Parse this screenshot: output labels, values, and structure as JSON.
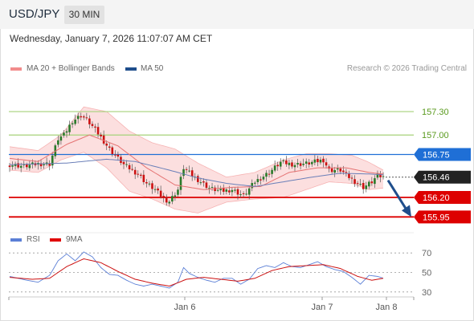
{
  "header": {
    "pair": "USD/JPY",
    "timeframe": "30 MIN"
  },
  "datetime": "Wednesday, January 7, 2026 11:07:07 AM CET",
  "legend": {
    "bollinger": {
      "label": "MA 20 + Bollinger Bands",
      "color": "#f28c8c"
    },
    "ma50": {
      "label": "MA 50",
      "color": "#1f4e8c"
    }
  },
  "credit": "Research © 2026 Trading Central",
  "rsi_legend": {
    "rsi": {
      "label": "RSI",
      "color": "#5b7fd6"
    },
    "ma9": {
      "label": "9MA",
      "color": "#e00000"
    }
  },
  "colors": {
    "bull": "#2a7a2a",
    "bear": "#cc1111",
    "wick": "#555555",
    "band_fill": "#fcd9d9",
    "arrow": "#1f4e8c"
  },
  "chart_data": [
    {
      "type": "candlestick",
      "title": "USD/JPY 30 MIN",
      "ylim": [
        155.83,
        157.65
      ],
      "x_ticks": [
        "Jan 6",
        "Jan 7",
        "Jan 8"
      ],
      "levels": [
        {
          "value": 157.3,
          "label": "157.30",
          "style": "green-line"
        },
        {
          "value": 157.0,
          "label": "157.00",
          "style": "green-line"
        },
        {
          "value": 156.75,
          "label": "156.75",
          "style": "blue-box"
        },
        {
          "value": 156.46,
          "label": "156.46",
          "style": "current-price"
        },
        {
          "value": 156.2,
          "label": "156.20",
          "style": "red-box"
        },
        {
          "value": 155.95,
          "label": "155.95",
          "style": "red-box"
        }
      ],
      "current_price": 156.46,
      "close_path": [
        [
          0,
          156.62
        ],
        [
          5,
          156.6
        ],
        [
          10,
          156.63
        ],
        [
          14,
          156.63
        ],
        [
          17,
          156.95
        ],
        [
          19,
          157.0
        ],
        [
          22,
          157.18
        ],
        [
          25,
          157.25
        ],
        [
          27,
          157.2
        ],
        [
          31,
          157.02
        ],
        [
          35,
          156.82
        ],
        [
          40,
          156.62
        ],
        [
          45,
          156.5
        ],
        [
          48,
          156.38
        ],
        [
          51,
          156.3
        ],
        [
          54,
          156.18
        ],
        [
          56,
          156.15
        ],
        [
          59,
          156.3
        ],
        [
          61,
          156.58
        ],
        [
          64,
          156.48
        ],
        [
          67,
          156.4
        ],
        [
          70,
          156.32
        ],
        [
          74,
          156.28
        ],
        [
          78,
          156.3
        ],
        [
          82,
          156.22
        ],
        [
          86,
          156.4
        ],
        [
          91,
          156.52
        ],
        [
          95,
          156.65
        ],
        [
          100,
          156.62
        ],
        [
          105,
          156.64
        ],
        [
          110,
          156.68
        ],
        [
          112,
          156.55
        ],
        [
          116,
          156.55
        ],
        [
          120,
          156.43
        ],
        [
          124,
          156.33
        ],
        [
          127,
          156.4
        ],
        [
          129,
          156.48
        ],
        [
          131,
          156.46
        ]
      ],
      "ma50_path": [
        [
          0,
          156.62
        ],
        [
          20,
          156.64
        ],
        [
          34,
          156.69
        ],
        [
          44,
          156.66
        ],
        [
          56,
          156.55
        ],
        [
          66,
          156.45
        ],
        [
          76,
          156.38
        ],
        [
          86,
          156.34
        ],
        [
          96,
          156.4
        ],
        [
          106,
          156.46
        ],
        [
          116,
          156.51
        ],
        [
          126,
          156.5
        ],
        [
          131,
          156.49
        ]
      ],
      "ma20_path": [
        [
          0,
          156.7
        ],
        [
          10,
          156.66
        ],
        [
          20,
          156.88
        ],
        [
          28,
          157.0
        ],
        [
          38,
          156.86
        ],
        [
          48,
          156.58
        ],
        [
          58,
          156.36
        ],
        [
          68,
          156.3
        ],
        [
          78,
          156.33
        ],
        [
          88,
          156.34
        ],
        [
          98,
          156.52
        ],
        [
          108,
          156.58
        ],
        [
          118,
          156.58
        ],
        [
          126,
          156.52
        ],
        [
          131,
          156.5
        ]
      ],
      "band_upper": [
        [
          0,
          156.85
        ],
        [
          10,
          156.8
        ],
        [
          18,
          157.0
        ],
        [
          26,
          157.36
        ],
        [
          34,
          157.3
        ],
        [
          42,
          157.05
        ],
        [
          50,
          156.9
        ],
        [
          58,
          156.82
        ],
        [
          66,
          156.64
        ],
        [
          76,
          156.46
        ],
        [
          86,
          156.52
        ],
        [
          96,
          156.68
        ],
        [
          104,
          156.76
        ],
        [
          112,
          156.76
        ],
        [
          120,
          156.74
        ],
        [
          126,
          156.65
        ],
        [
          131,
          156.55
        ]
      ],
      "band_lower": [
        [
          0,
          156.55
        ],
        [
          10,
          156.52
        ],
        [
          18,
          156.68
        ],
        [
          26,
          156.78
        ],
        [
          34,
          156.58
        ],
        [
          42,
          156.28
        ],
        [
          50,
          156.18
        ],
        [
          58,
          156.05
        ],
        [
          66,
          156.0
        ],
        [
          76,
          156.14
        ],
        [
          86,
          156.18
        ],
        [
          96,
          156.2
        ],
        [
          104,
          156.3
        ],
        [
          112,
          156.4
        ],
        [
          120,
          156.38
        ],
        [
          126,
          156.3
        ],
        [
          131,
          156.32
        ]
      ]
    },
    {
      "type": "line",
      "title": "RSI",
      "ylim": [
        20,
        80
      ],
      "ticks": [
        70,
        50,
        30
      ],
      "rsi_path": [
        [
          0,
          46
        ],
        [
          6,
          42
        ],
        [
          10,
          40
        ],
        [
          14,
          47
        ],
        [
          17,
          62
        ],
        [
          20,
          69
        ],
        [
          23,
          62
        ],
        [
          26,
          71
        ],
        [
          29,
          66
        ],
        [
          32,
          55
        ],
        [
          35,
          48
        ],
        [
          38,
          47
        ],
        [
          41,
          42
        ],
        [
          44,
          38
        ],
        [
          47,
          36
        ],
        [
          50,
          38
        ],
        [
          53,
          36
        ],
        [
          56,
          34
        ],
        [
          59,
          40
        ],
        [
          61,
          55
        ],
        [
          63,
          49
        ],
        [
          66,
          45
        ],
        [
          69,
          42
        ],
        [
          72,
          40
        ],
        [
          75,
          44
        ],
        [
          78,
          44
        ],
        [
          81,
          38
        ],
        [
          84,
          43
        ],
        [
          87,
          54
        ],
        [
          90,
          57
        ],
        [
          93,
          55
        ],
        [
          96,
          60
        ],
        [
          99,
          56
        ],
        [
          102,
          55
        ],
        [
          105,
          58
        ],
        [
          108,
          61
        ],
        [
          111,
          56
        ],
        [
          114,
          53
        ],
        [
          117,
          51
        ],
        [
          120,
          45
        ],
        [
          123,
          38
        ],
        [
          126,
          47
        ],
        [
          129,
          46
        ],
        [
          131,
          44
        ]
      ],
      "ma9_path": [
        [
          0,
          45
        ],
        [
          8,
          43
        ],
        [
          14,
          44
        ],
        [
          20,
          56
        ],
        [
          26,
          64
        ],
        [
          32,
          60
        ],
        [
          38,
          51
        ],
        [
          44,
          43
        ],
        [
          50,
          39
        ],
        [
          56,
          36
        ],
        [
          62,
          43
        ],
        [
          68,
          45
        ],
        [
          74,
          43
        ],
        [
          80,
          41
        ],
        [
          86,
          44
        ],
        [
          92,
          52
        ],
        [
          98,
          56
        ],
        [
          104,
          57
        ],
        [
          110,
          58
        ],
        [
          116,
          54
        ],
        [
          122,
          46
        ],
        [
          127,
          42
        ],
        [
          131,
          44
        ]
      ]
    }
  ]
}
